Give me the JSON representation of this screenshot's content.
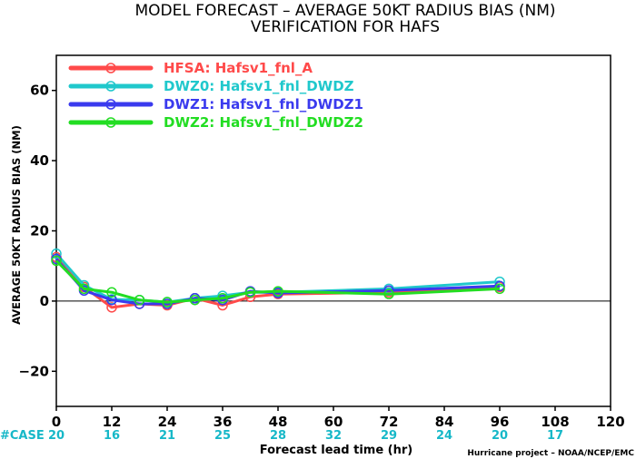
{
  "chart_data": {
    "type": "line",
    "title": "MODEL FORECAST – AVERAGE 50KT RADIUS BIAS (NM)",
    "subtitle": "VERIFICATION FOR HAFS",
    "xlabel": "Forecast lead time (hr)",
    "ylabel": "AVERAGE 50KT RADIUS BIAS (NM)",
    "xlim": [
      0,
      120
    ],
    "ylim": [
      -30,
      70
    ],
    "xticks": [
      0,
      12,
      24,
      36,
      48,
      60,
      72,
      84,
      96,
      108,
      120
    ],
    "yticks": [
      -20,
      0,
      20,
      40,
      60
    ],
    "zero_line": true,
    "legend_position": "top-left",
    "case_label": "#CASE",
    "case_counts": [
      {
        "x": 0,
        "n": "20"
      },
      {
        "x": 12,
        "n": "16"
      },
      {
        "x": 24,
        "n": "21"
      },
      {
        "x": 36,
        "n": "25"
      },
      {
        "x": 48,
        "n": "28"
      },
      {
        "x": 60,
        "n": "32"
      },
      {
        "x": 72,
        "n": "29"
      },
      {
        "x": 84,
        "n": "24"
      },
      {
        "x": 96,
        "n": "20"
      },
      {
        "x": 108,
        "n": "17"
      }
    ],
    "credit": "Hurricane project – NOAA/NCEP/EMC",
    "x": [
      0,
      6,
      12,
      18,
      24,
      30,
      36,
      42,
      48,
      72,
      96
    ],
    "series": [
      {
        "name": "HFSA:  Hafsv1_fnl_A",
        "color": "#ff4a4a",
        "values": [
          12.5,
          4.0,
          -1.8,
          -0.8,
          -1.2,
          0.8,
          -1.2,
          1.2,
          2.0,
          2.5,
          4.0
        ]
      },
      {
        "name": "DWZ0:  Hafsv1_fnl_DWDZ",
        "color": "#20c8cc",
        "values": [
          13.5,
          4.5,
          0.5,
          0.3,
          -0.3,
          0.8,
          1.5,
          2.5,
          2.5,
          3.5,
          5.5
        ]
      },
      {
        "name": "DWZ1:  Hafsv1_fnl_DWDZ1",
        "color": "#3a3aee",
        "values": [
          12.0,
          3.0,
          0.3,
          -0.8,
          -0.8,
          0.8,
          0.3,
          2.8,
          2.3,
          3.0,
          4.3
        ]
      },
      {
        "name": "DWZ2:  Hafsv1_fnl_DWDZ2",
        "color": "#22dd22",
        "values": [
          11.5,
          3.5,
          2.5,
          0.3,
          -0.3,
          0.3,
          0.8,
          2.5,
          2.8,
          2.0,
          3.5
        ]
      }
    ]
  }
}
